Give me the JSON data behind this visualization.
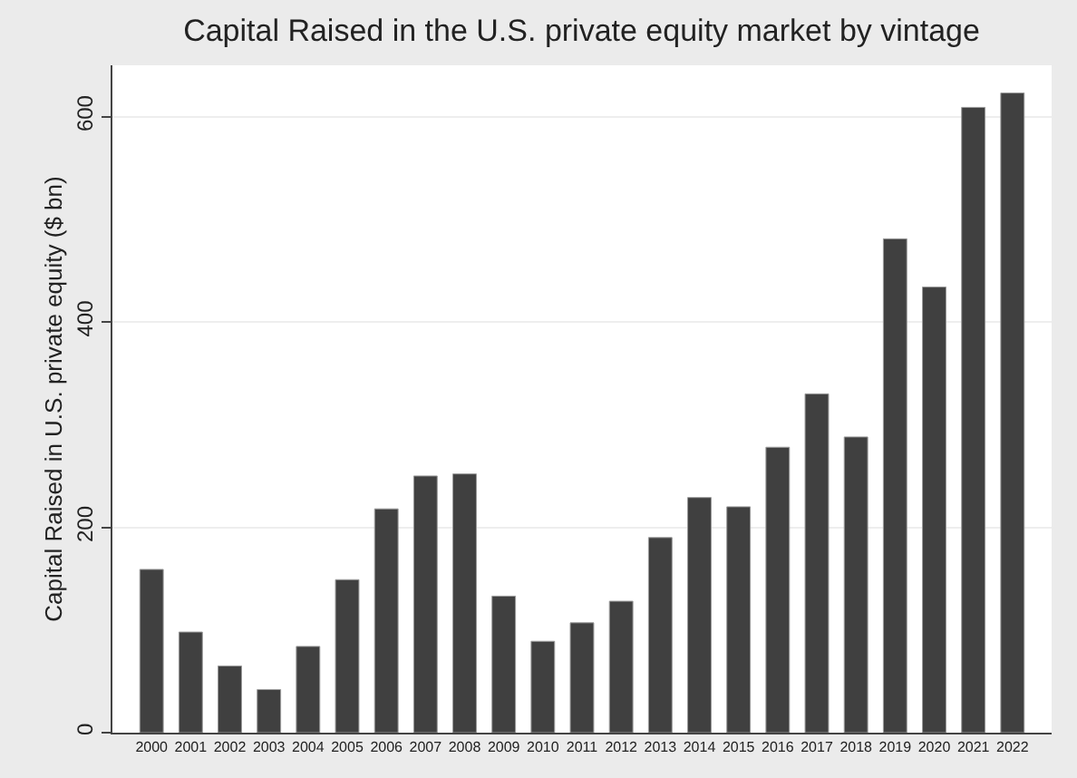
{
  "chart_data": {
    "type": "bar",
    "title": "Capital Raised in the U.S. private equity market by vintage",
    "ylabel": "Capital Raised in U.S. private equity ($ bn)",
    "categories": [
      "2000",
      "2001",
      "2002",
      "2003",
      "2004",
      "2005",
      "2006",
      "2007",
      "2008",
      "2009",
      "2010",
      "2011",
      "2012",
      "2013",
      "2014",
      "2015",
      "2016",
      "2017",
      "2018",
      "2019",
      "2020",
      "2021",
      "2022"
    ],
    "values": [
      159,
      98,
      65,
      42,
      84,
      149,
      218,
      250,
      252,
      133,
      89,
      107,
      128,
      190,
      229,
      220,
      278,
      330,
      288,
      481,
      434,
      609,
      623
    ],
    "color": "#404040",
    "ylim": [
      0,
      650
    ],
    "yticks": [
      0,
      200,
      400,
      600
    ],
    "grid": "y",
    "legend": false
  }
}
